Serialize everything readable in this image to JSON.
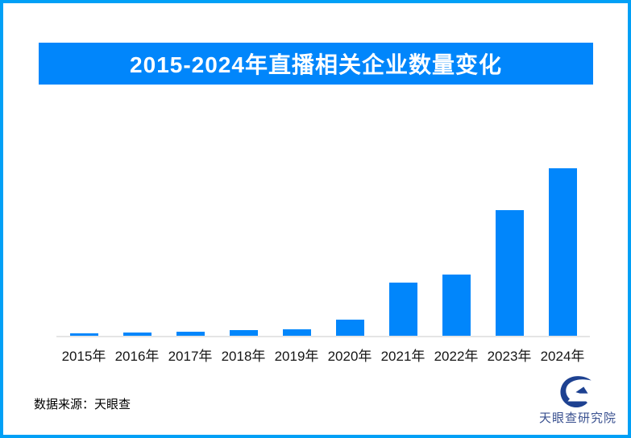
{
  "page": {
    "border_color": "#01A0F6",
    "background_color": "#ffffff"
  },
  "header": {
    "title": "2015-2024年直播相关企业数量变化",
    "banner_color": "#0186FB",
    "title_color": "#ffffff"
  },
  "chart_data": {
    "type": "bar",
    "title": "2015-2024年直播相关企业数量变化",
    "categories": [
      "2015年",
      "2016年",
      "2017年",
      "2018年",
      "2019年",
      "2020年",
      "2021年",
      "2022年",
      "2023年",
      "2024年"
    ],
    "values": [
      3.5,
      4.5,
      5.5,
      7,
      8,
      20,
      66,
      76,
      156,
      208
    ],
    "value_basis": "relative bar heights (no y-axis, gridlines or data labels shown in image)",
    "bar_color": "#0186FB",
    "xlabel": "",
    "ylabel": "",
    "ylim": [
      0,
      230
    ],
    "grid": false,
    "y_axis_visible": false,
    "legend": "none",
    "axis_line_color": "#e5e5e5"
  },
  "footer": {
    "source_text": "数据来源：天眼查",
    "logo_text": "天眼查研究院",
    "logo_color": "#1D4191"
  }
}
